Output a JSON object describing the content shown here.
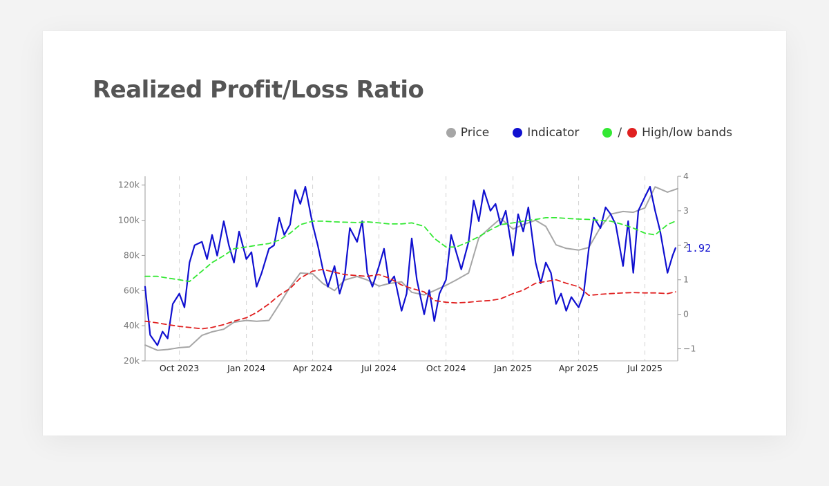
{
  "page": {
    "title": "Realized Profit/Loss Ratio"
  },
  "legend": {
    "price": {
      "label": "Price",
      "color": "#a6a6a6"
    },
    "indicator": {
      "label": "Indicator",
      "color": "#1010d0"
    },
    "bands": {
      "label": "High/low bands",
      "slash": "/",
      "high_color": "#33e833",
      "low_color": "#e02020"
    }
  },
  "chart_data": {
    "type": "line",
    "title": "Realized Profit/Loss Ratio",
    "x_range": [
      "2023-08-15",
      "2025-08-15"
    ],
    "x_ticks": [
      "Oct 2023",
      "Jan 2024",
      "Apr 2024",
      "Jul 2024",
      "Oct 2024",
      "Jan 2025",
      "Apr 2025",
      "Jul 2025"
    ],
    "y_left": {
      "label": "",
      "ticks": [
        "20k",
        "40k",
        "60k",
        "80k",
        "100k",
        "120k"
      ],
      "range": [
        20000,
        125000
      ]
    },
    "y_right": {
      "label": "",
      "ticks": [
        "−1",
        "0",
        "1",
        "2",
        "3",
        "4"
      ],
      "range": [
        -1.35,
        4
      ]
    },
    "grid": "vertical dashed",
    "legend_position": "top-right",
    "last_value_label": "1.92",
    "series": [
      {
        "name": "Price",
        "axis": "left",
        "color": "#a6a6a6",
        "style": "solid",
        "x": [
          "2023-08-15",
          "2023-09-01",
          "2023-09-15",
          "2023-10-01",
          "2023-10-15",
          "2023-11-01",
          "2023-11-15",
          "2023-12-01",
          "2023-12-15",
          "2024-01-01",
          "2024-01-15",
          "2024-02-01",
          "2024-02-15",
          "2024-03-01",
          "2024-03-15",
          "2024-04-01",
          "2024-04-15",
          "2024-05-01",
          "2024-05-15",
          "2024-06-01",
          "2024-06-15",
          "2024-07-01",
          "2024-07-15",
          "2024-08-01",
          "2024-08-15",
          "2024-09-01",
          "2024-09-15",
          "2024-10-01",
          "2024-10-15",
          "2024-11-01",
          "2024-11-15",
          "2024-12-01",
          "2024-12-15",
          "2025-01-01",
          "2025-01-15",
          "2025-02-01",
          "2025-02-15",
          "2025-03-01",
          "2025-03-15",
          "2025-04-01",
          "2025-04-15",
          "2025-05-01",
          "2025-05-15",
          "2025-06-01",
          "2025-06-15",
          "2025-07-01",
          "2025-07-15",
          "2025-08-01",
          "2025-08-15"
        ],
        "values": [
          29000,
          26000,
          26500,
          27500,
          28000,
          34500,
          36500,
          38000,
          42000,
          43000,
          42500,
          43000,
          52000,
          62000,
          70000,
          69500,
          64000,
          60000,
          66000,
          68000,
          66000,
          62500,
          64000,
          65000,
          59000,
          57500,
          60000,
          63000,
          66000,
          70000,
          90000,
          96000,
          101000,
          95000,
          97500,
          100000,
          96500,
          86000,
          84000,
          83000,
          84500,
          96000,
          103500,
          105000,
          104500,
          107000,
          119000,
          116000,
          118000
        ]
      },
      {
        "name": "Indicator",
        "axis": "right",
        "color": "#1010d0",
        "style": "solid",
        "x": [
          "2023-08-15",
          "2023-08-22",
          "2023-09-01",
          "2023-09-08",
          "2023-09-15",
          "2023-09-22",
          "2023-10-01",
          "2023-10-08",
          "2023-10-15",
          "2023-10-22",
          "2023-11-01",
          "2023-11-08",
          "2023-11-15",
          "2023-11-22",
          "2023-12-01",
          "2023-12-08",
          "2023-12-15",
          "2023-12-22",
          "2024-01-01",
          "2024-01-08",
          "2024-01-15",
          "2024-01-22",
          "2024-02-01",
          "2024-02-08",
          "2024-02-15",
          "2024-02-22",
          "2024-03-01",
          "2024-03-08",
          "2024-03-15",
          "2024-03-22",
          "2024-04-01",
          "2024-04-08",
          "2024-04-15",
          "2024-04-22",
          "2024-05-01",
          "2024-05-08",
          "2024-05-15",
          "2024-05-22",
          "2024-06-01",
          "2024-06-08",
          "2024-06-15",
          "2024-06-22",
          "2024-07-01",
          "2024-07-08",
          "2024-07-15",
          "2024-07-22",
          "2024-08-01",
          "2024-08-08",
          "2024-08-15",
          "2024-08-22",
          "2024-09-01",
          "2024-09-08",
          "2024-09-15",
          "2024-09-22",
          "2024-10-01",
          "2024-10-08",
          "2024-10-15",
          "2024-10-22",
          "2024-11-01",
          "2024-11-08",
          "2024-11-15",
          "2024-11-22",
          "2024-12-01",
          "2024-12-08",
          "2024-12-15",
          "2024-12-22",
          "2025-01-01",
          "2025-01-08",
          "2025-01-15",
          "2025-01-22",
          "2025-02-01",
          "2025-02-08",
          "2025-02-15",
          "2025-02-22",
          "2025-03-01",
          "2025-03-08",
          "2025-03-15",
          "2025-03-22",
          "2025-04-01",
          "2025-04-08",
          "2025-04-15",
          "2025-04-22",
          "2025-05-01",
          "2025-05-08",
          "2025-05-15",
          "2025-05-22",
          "2025-06-01",
          "2025-06-08",
          "2025-06-15",
          "2025-06-22",
          "2025-07-01",
          "2025-07-08",
          "2025-07-15",
          "2025-07-22",
          "2025-08-01",
          "2025-08-08",
          "2025-08-12"
        ],
        "values": [
          0.8,
          -0.6,
          -0.9,
          -0.5,
          -0.7,
          0.3,
          0.6,
          0.2,
          1.5,
          2.0,
          2.1,
          1.6,
          2.3,
          1.7,
          2.7,
          2.0,
          1.5,
          2.4,
          1.6,
          1.8,
          0.8,
          1.2,
          1.9,
          2.0,
          2.8,
          2.3,
          2.6,
          3.6,
          3.2,
          3.7,
          2.6,
          2.0,
          1.3,
          0.8,
          1.4,
          0.6,
          1.1,
          2.5,
          2.1,
          2.7,
          1.2,
          0.8,
          1.4,
          1.9,
          0.9,
          1.1,
          0.1,
          0.6,
          2.2,
          1.0,
          0.0,
          0.7,
          -0.2,
          0.6,
          1.0,
          2.3,
          1.8,
          1.3,
          2.1,
          3.3,
          2.7,
          3.6,
          3.0,
          3.2,
          2.6,
          3.0,
          1.7,
          2.9,
          2.4,
          3.1,
          1.5,
          0.9,
          1.5,
          1.2,
          0.3,
          0.6,
          0.1,
          0.5,
          0.2,
          0.6,
          1.9,
          2.8,
          2.5,
          3.1,
          2.9,
          2.6,
          1.4,
          2.7,
          1.2,
          3.0,
          3.4,
          3.7,
          3.0,
          2.4,
          1.2,
          1.7,
          1.92
        ]
      },
      {
        "name": "High/low bands",
        "axis": "right",
        "color": "#33e833",
        "style": "dashed",
        "x": [
          "2023-08-15",
          "2023-09-01",
          "2023-09-15",
          "2023-10-01",
          "2023-10-15",
          "2023-11-01",
          "2023-11-15",
          "2023-12-01",
          "2023-12-15",
          "2024-01-01",
          "2024-01-15",
          "2024-02-01",
          "2024-02-15",
          "2024-03-01",
          "2024-03-15",
          "2024-04-01",
          "2024-04-15",
          "2024-05-01",
          "2024-05-15",
          "2024-06-01",
          "2024-06-15",
          "2024-07-01",
          "2024-07-15",
          "2024-08-01",
          "2024-08-15",
          "2024-09-01",
          "2024-09-15",
          "2024-10-01",
          "2024-10-15",
          "2024-11-01",
          "2024-11-15",
          "2024-12-01",
          "2024-12-15",
          "2025-01-01",
          "2025-01-15",
          "2025-02-01",
          "2025-02-15",
          "2025-03-01",
          "2025-03-15",
          "2025-04-01",
          "2025-04-15",
          "2025-05-01",
          "2025-05-15",
          "2025-06-01",
          "2025-06-15",
          "2025-07-01",
          "2025-07-15",
          "2025-08-01",
          "2025-08-12"
        ],
        "values": [
          1.1,
          1.1,
          1.05,
          1.0,
          0.95,
          1.25,
          1.5,
          1.7,
          1.9,
          1.95,
          2.0,
          2.05,
          2.15,
          2.35,
          2.6,
          2.7,
          2.7,
          2.68,
          2.67,
          2.66,
          2.68,
          2.65,
          2.62,
          2.62,
          2.65,
          2.55,
          2.2,
          1.95,
          1.95,
          2.1,
          2.25,
          2.45,
          2.6,
          2.65,
          2.7,
          2.75,
          2.8,
          2.8,
          2.78,
          2.76,
          2.75,
          2.72,
          2.7,
          2.6,
          2.5,
          2.35,
          2.3,
          2.6,
          2.7
        ]
      },
      {
        "name": "",
        "axis": "right",
        "color": "#e02020",
        "style": "dashed",
        "x": [
          "2023-08-15",
          "2023-09-01",
          "2023-09-15",
          "2023-10-01",
          "2023-10-15",
          "2023-11-01",
          "2023-11-15",
          "2023-12-01",
          "2023-12-15",
          "2024-01-01",
          "2024-01-15",
          "2024-02-01",
          "2024-02-15",
          "2024-03-01",
          "2024-03-15",
          "2024-04-01",
          "2024-04-15",
          "2024-05-01",
          "2024-05-15",
          "2024-06-01",
          "2024-06-15",
          "2024-07-01",
          "2024-07-15",
          "2024-08-01",
          "2024-08-15",
          "2024-09-01",
          "2024-09-15",
          "2024-10-01",
          "2024-10-15",
          "2024-11-01",
          "2024-11-15",
          "2024-12-01",
          "2024-12-15",
          "2025-01-01",
          "2025-01-15",
          "2025-02-01",
          "2025-02-15",
          "2025-03-01",
          "2025-03-15",
          "2025-04-01",
          "2025-04-15",
          "2025-05-01",
          "2025-05-15",
          "2025-06-01",
          "2025-06-15",
          "2025-07-01",
          "2025-07-15",
          "2025-08-01",
          "2025-08-12"
        ],
        "values": [
          -0.2,
          -0.25,
          -0.3,
          -0.35,
          -0.38,
          -0.42,
          -0.38,
          -0.3,
          -0.2,
          -0.1,
          0.05,
          0.3,
          0.55,
          0.75,
          1.05,
          1.25,
          1.3,
          1.22,
          1.15,
          1.12,
          1.1,
          1.15,
          1.05,
          0.85,
          0.75,
          0.65,
          0.4,
          0.35,
          0.33,
          0.35,
          0.38,
          0.4,
          0.45,
          0.6,
          0.7,
          0.9,
          0.95,
          1.0,
          0.9,
          0.8,
          0.55,
          0.58,
          0.6,
          0.62,
          0.63,
          0.62,
          0.62,
          0.6,
          0.65
        ]
      }
    ]
  }
}
